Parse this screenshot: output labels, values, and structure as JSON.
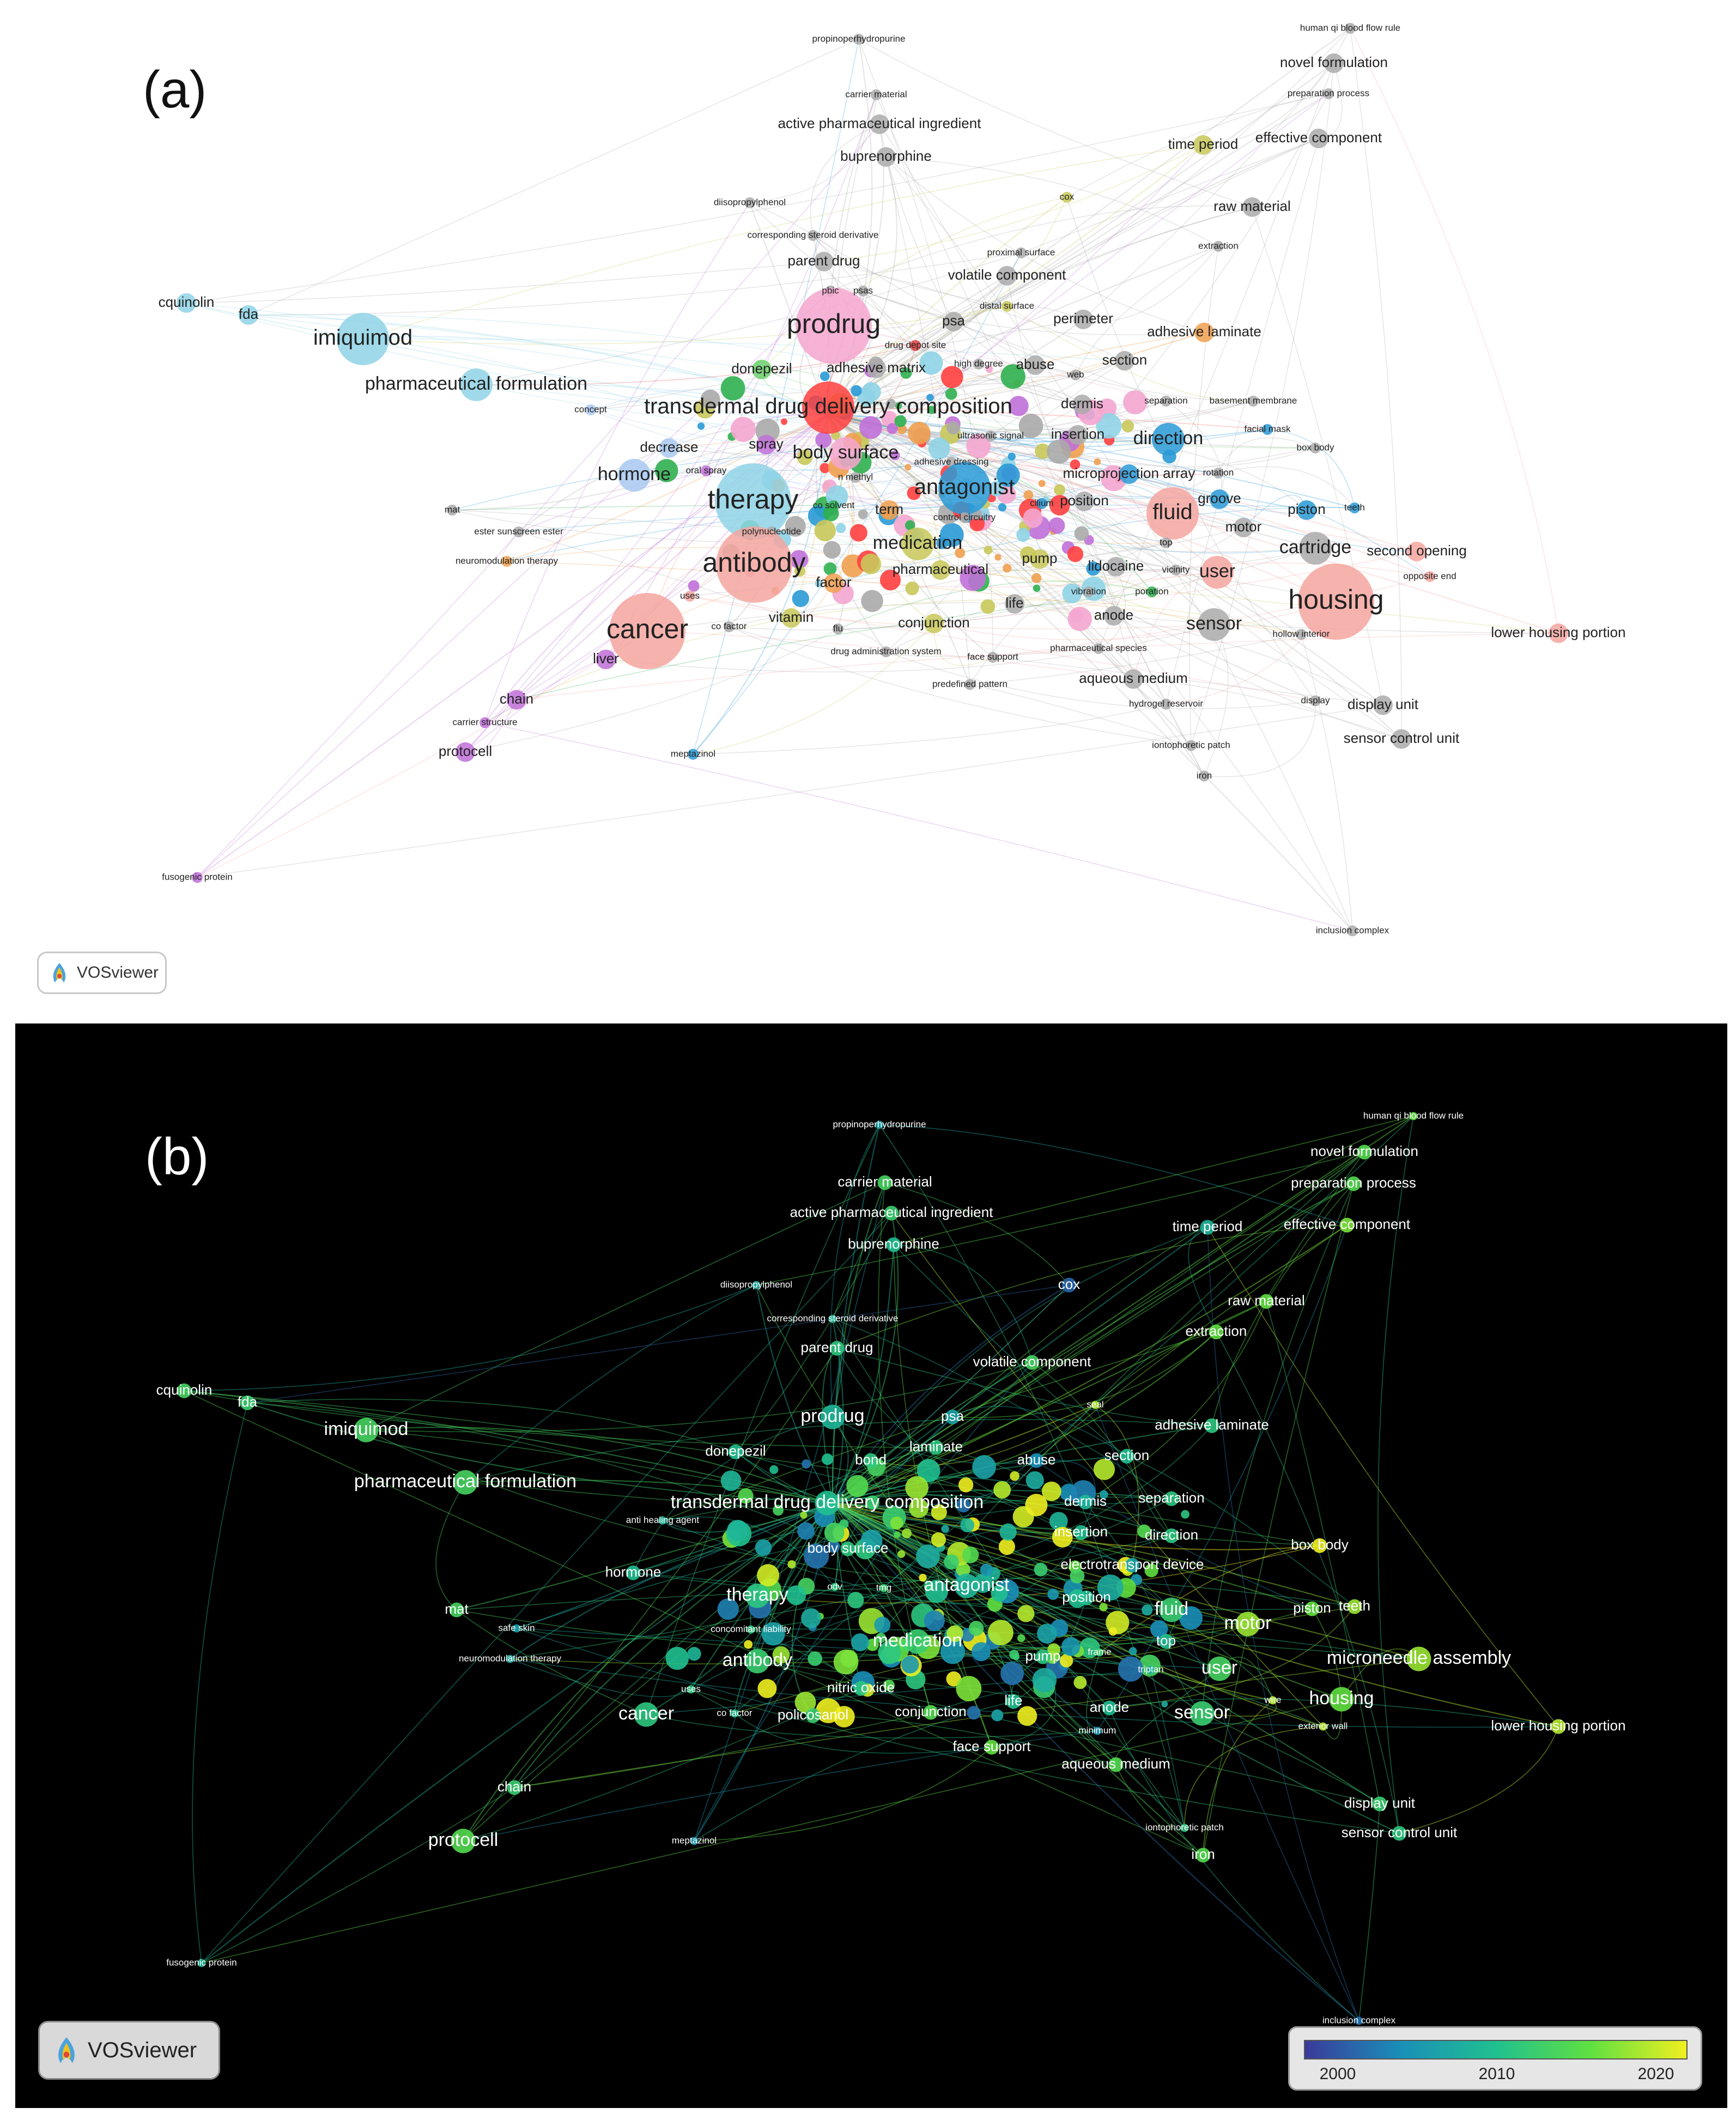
{
  "panel_a": {
    "label": "(a)",
    "badge": "VOSviewer",
    "nodes": [
      {
        "label": "human qi blood flow rule",
        "color": "#aaaaaa",
        "size": 1
      },
      {
        "label": "novel formulation",
        "color": "#aaaaaa",
        "size": 2
      },
      {
        "label": "preparation process",
        "color": "#aaaaaa",
        "size": 1
      },
      {
        "label": "propinoperhydropurine",
        "color": "#aaaaaa",
        "size": 1
      },
      {
        "label": "carrier material",
        "color": "#aaaaaa",
        "size": 1
      },
      {
        "label": "active pharmaceutical ingredient",
        "color": "#aaaaaa",
        "size": 2
      },
      {
        "label": "buprenorphine",
        "color": "#aaaaaa",
        "size": 2
      },
      {
        "label": "time period",
        "color": "#c8c85a",
        "size": 2
      },
      {
        "label": "effective component",
        "color": "#aaaaaa",
        "size": 2
      },
      {
        "label": "cox",
        "color": "#c8c85a",
        "size": 1
      },
      {
        "label": "raw material",
        "color": "#aaaaaa",
        "size": 2
      },
      {
        "label": "diisopropylphenol",
        "color": "#aaaaaa",
        "size": 1
      },
      {
        "label": "corresponding steroid derivative",
        "color": "#aaaaaa",
        "size": 1
      },
      {
        "label": "extraction",
        "color": "#aaaaaa",
        "size": 1
      },
      {
        "label": "parent drug",
        "color": "#aaaaaa",
        "size": 2
      },
      {
        "label": "proximal surface",
        "color": "#aaaaaa",
        "size": 1
      },
      {
        "label": "volatile component",
        "color": "#aaaaaa",
        "size": 2
      },
      {
        "label": "pbic",
        "color": "#aaaaaa",
        "size": 1
      },
      {
        "label": "psas",
        "color": "#aaaaaa",
        "size": 1
      },
      {
        "label": "distal surface",
        "color": "#c8c85a",
        "size": 1
      },
      {
        "label": "perimeter",
        "color": "#aaaaaa",
        "size": 2
      },
      {
        "label": "cquinolin",
        "color": "#8fd3e6",
        "size": 2
      },
      {
        "label": "fda",
        "color": "#8fd3e6",
        "size": 2
      },
      {
        "label": "prodrug",
        "color": "#f4a6cf",
        "size": 5
      },
      {
        "label": "psa",
        "color": "#aaaaaa",
        "size": 2
      },
      {
        "label": "adhesive laminate",
        "color": "#f0a050",
        "size": 2
      },
      {
        "label": "imiquimod",
        "color": "#8fd3e6",
        "size": 4
      },
      {
        "label": "drug depot site",
        "color": "#e04040",
        "size": 1
      },
      {
        "label": "donepezil",
        "color": "#6bd06b",
        "size": 2
      },
      {
        "label": "adhesive matrix",
        "color": "#aaaaaa",
        "size": 2
      },
      {
        "label": "high degree",
        "color": "#aaaaaa",
        "size": 1
      },
      {
        "label": "abuse",
        "color": "#aaaaaa",
        "size": 2
      },
      {
        "label": "web",
        "color": "#aaaaaa",
        "size": 1
      },
      {
        "label": "section",
        "color": "#aaaaaa",
        "size": 2
      },
      {
        "label": "pharmaceutical formulation",
        "color": "#8fd3e6",
        "size": 3
      },
      {
        "label": "transdermal drug delivery composition",
        "color": "#ff4040",
        "size": 4
      },
      {
        "label": "dermis",
        "color": "#aaaaaa",
        "size": 2
      },
      {
        "label": "separation",
        "color": "#aaaaaa",
        "size": 1
      },
      {
        "label": "basement membrane",
        "color": "#aaaaaa",
        "size": 1
      },
      {
        "label": "concept",
        "color": "#a8c8f0",
        "size": 1
      },
      {
        "label": "ultrasonic signal",
        "color": "#aaaaaa",
        "size": 1
      },
      {
        "label": "insertion",
        "color": "#aaaaaa",
        "size": 2
      },
      {
        "label": "facial mask",
        "color": "#2a9ad6",
        "size": 1
      },
      {
        "label": "direction",
        "color": "#2a9ad6",
        "size": 3
      },
      {
        "label": "decrease",
        "color": "#a8c8f0",
        "size": 2
      },
      {
        "label": "spray",
        "color": "#c070d8",
        "size": 2
      },
      {
        "label": "body surface",
        "color": "#f4a6cf",
        "size": 3
      },
      {
        "label": "box body",
        "color": "#aaaaaa",
        "size": 1
      },
      {
        "label": "adhesive dressing",
        "color": "#aaaaaa",
        "size": 1
      },
      {
        "label": "oral spray",
        "color": "#c070d8",
        "size": 1
      },
      {
        "label": "n methyl",
        "color": "#aaaaaa",
        "size": 1
      },
      {
        "label": "hormone",
        "color": "#a8c8f0",
        "size": 3
      },
      {
        "label": "antagonist",
        "color": "#2a9ad6",
        "size": 4
      },
      {
        "label": "microprojection array",
        "color": "#2a9ad6",
        "size": 2
      },
      {
        "label": "rotation",
        "color": "#aaaaaa",
        "size": 1
      },
      {
        "label": "co solvent",
        "color": "#30b050",
        "size": 1
      },
      {
        "label": "groove",
        "color": "#2a9ad6",
        "size": 2
      },
      {
        "label": "therapy",
        "color": "#8fd3e6",
        "size": 5
      },
      {
        "label": "cilium",
        "color": "#2a9ad6",
        "size": 1
      },
      {
        "label": "position",
        "color": "#aaaaaa",
        "size": 2
      },
      {
        "label": "piston",
        "color": "#2a9ad6",
        "size": 2
      },
      {
        "label": "teeth",
        "color": "#2a9ad6",
        "size": 1
      },
      {
        "label": "mat",
        "color": "#aaaaaa",
        "size": 1
      },
      {
        "label": "term",
        "color": "#f0a050",
        "size": 2
      },
      {
        "label": "control circuitry",
        "color": "#aaaaaa",
        "size": 1
      },
      {
        "label": "fluid",
        "color": "#f4a6a0",
        "size": 4
      },
      {
        "label": "polynucleotide",
        "color": "#aaaaaa",
        "size": 1
      },
      {
        "label": "motor",
        "color": "#aaaaaa",
        "size": 2
      },
      {
        "label": "ester sunscreen ester",
        "color": "#aaaaaa",
        "size": 1
      },
      {
        "label": "medication",
        "color": "#c8c85a",
        "size": 3
      },
      {
        "label": "top",
        "color": "#aaaaaa",
        "size": 1
      },
      {
        "label": "cartridge",
        "color": "#aaaaaa",
        "size": 3
      },
      {
        "label": "second opening",
        "color": "#f4a6a0",
        "size": 2
      },
      {
        "label": "pump",
        "color": "#c8c85a",
        "size": 2
      },
      {
        "label": "antibody",
        "color": "#f4a6a0",
        "size": 5
      },
      {
        "label": "neuromodulation therapy",
        "color": "#f0a050",
        "size": 1
      },
      {
        "label": "pharmaceutical",
        "color": "#c8c85a",
        "size": 2
      },
      {
        "label": "lidocaine",
        "color": "#aaaaaa",
        "size": 2
      },
      {
        "label": "vicinity",
        "color": "#aaaaaa",
        "size": 1
      },
      {
        "label": "opposite end",
        "color": "#f4a6a0",
        "size": 1
      },
      {
        "label": "factor",
        "color": "#f0a050",
        "size": 2
      },
      {
        "label": "user",
        "color": "#f4a6a0",
        "size": 3
      },
      {
        "label": "vibration",
        "color": "#aaaaaa",
        "size": 1
      },
      {
        "label": "poration",
        "color": "#30b050",
        "size": 1
      },
      {
        "label": "housing",
        "color": "#f4a6a0",
        "size": 5
      },
      {
        "label": "uses",
        "color": "#f4a6a0",
        "size": 1
      },
      {
        "label": "life",
        "color": "#aaaaaa",
        "size": 2
      },
      {
        "label": "vitamin",
        "color": "#c8c85a",
        "size": 2
      },
      {
        "label": "anode",
        "color": "#aaaaaa",
        "size": 2
      },
      {
        "label": "co factor",
        "color": "#aaaaaa",
        "size": 1
      },
      {
        "label": "flu",
        "color": "#aaaaaa",
        "size": 1
      },
      {
        "label": "conjunction",
        "color": "#c8c85a",
        "size": 2
      },
      {
        "label": "sensor",
        "color": "#aaaaaa",
        "size": 3
      },
      {
        "label": "cancer",
        "color": "#f4a6a0",
        "size": 5
      },
      {
        "label": "hollow interior",
        "color": "#aaaaaa",
        "size": 1
      },
      {
        "label": "lower housing portion",
        "color": "#f4a6a0",
        "size": 2
      },
      {
        "label": "pharmaceutical species",
        "color": "#aaaaaa",
        "size": 1
      },
      {
        "label": "drug administration system",
        "color": "#aaaaaa",
        "size": 1
      },
      {
        "label": "face support",
        "color": "#aaaaaa",
        "size": 1
      },
      {
        "label": "liver",
        "color": "#c070d8",
        "size": 2
      },
      {
        "label": "aqueous medium",
        "color": "#aaaaaa",
        "size": 2
      },
      {
        "label": "predefined pattern",
        "color": "#aaaaaa",
        "size": 1
      },
      {
        "label": "chain",
        "color": "#c070d8",
        "size": 2
      },
      {
        "label": "hydrogel reservoir",
        "color": "#aaaaaa",
        "size": 1
      },
      {
        "label": "display",
        "color": "#aaaaaa",
        "size": 1
      },
      {
        "label": "display unit",
        "color": "#aaaaaa",
        "size": 2
      },
      {
        "label": "carrier structure",
        "color": "#c070d8",
        "size": 1
      },
      {
        "label": "sensor control unit",
        "color": "#aaaaaa",
        "size": 2
      },
      {
        "label": "iontophoretic patch",
        "color": "#aaaaaa",
        "size": 1
      },
      {
        "label": "protocell",
        "color": "#c070d8",
        "size": 2
      },
      {
        "label": "meptazinol",
        "color": "#2a9ad6",
        "size": 1
      },
      {
        "label": "iron",
        "color": "#aaaaaa",
        "size": 1
      },
      {
        "label": "fusogenic protein",
        "color": "#c070d8",
        "size": 1
      },
      {
        "label": "inclusion complex",
        "color": "#aaaaaa",
        "size": 1
      }
    ]
  },
  "panel_b": {
    "label": "(b)",
    "badge": "VOSviewer",
    "legend": {
      "ticks": [
        "2000",
        "2010",
        "2020"
      ],
      "colors": [
        "#3a3a9a",
        "#1a8fb8",
        "#20c090",
        "#60e040",
        "#f0f020"
      ]
    },
    "nodes": [
      {
        "label": "propinoperhydropurine",
        "year": 2008,
        "size": 1
      },
      {
        "label": "human qi blood flow rule",
        "year": 2016,
        "size": 1
      },
      {
        "label": "novel formulation",
        "year": 2015,
        "size": 2
      },
      {
        "label": "carrier material",
        "year": 2014,
        "size": 2
      },
      {
        "label": "preparation process",
        "year": 2015,
        "size": 2
      },
      {
        "label": "active pharmaceutical ingredient",
        "year": 2013,
        "size": 2
      },
      {
        "label": "time period",
        "year": 2010,
        "size": 2
      },
      {
        "label": "effective component",
        "year": 2017,
        "size": 2
      },
      {
        "label": "buprenorphine",
        "year": 2011,
        "size": 2
      },
      {
        "label": "diisopropylphenol",
        "year": 2009,
        "size": 1
      },
      {
        "label": "cox",
        "year": 2003,
        "size": 2
      },
      {
        "label": "raw material",
        "year": 2016,
        "size": 2
      },
      {
        "label": "corresponding steroid derivative",
        "year": 2010,
        "size": 1
      },
      {
        "label": "extraction",
        "year": 2016,
        "size": 2
      },
      {
        "label": "parent drug",
        "year": 2012,
        "size": 2
      },
      {
        "label": "volatile component",
        "year": 2014,
        "size": 2
      },
      {
        "label": "cquinolin",
        "year": 2014,
        "size": 2
      },
      {
        "label": "fda",
        "year": 2013,
        "size": 2
      },
      {
        "label": "seal",
        "year": 2019,
        "size": 1
      },
      {
        "label": "prodrug",
        "year": 2010,
        "size": 3
      },
      {
        "label": "psa",
        "year": 2008,
        "size": 2
      },
      {
        "label": "adhesive laminate",
        "year": 2012,
        "size": 2
      },
      {
        "label": "imiquimod",
        "year": 2014,
        "size": 3
      },
      {
        "label": "laminate",
        "year": 2012,
        "size": 2
      },
      {
        "label": "donepezil",
        "year": 2011,
        "size": 2
      },
      {
        "label": "bond",
        "year": 2012,
        "size": 2
      },
      {
        "label": "abuse",
        "year": 2006,
        "size": 2
      },
      {
        "label": "section",
        "year": 2011,
        "size": 2
      },
      {
        "label": "pharmaceutical formulation",
        "year": 2014,
        "size": 3
      },
      {
        "label": "transdermal drug delivery composition",
        "year": 2011,
        "size": 3
      },
      {
        "label": "dermis",
        "year": 2010,
        "size": 2
      },
      {
        "label": "separation",
        "year": 2012,
        "size": 2
      },
      {
        "label": "anti healing agent",
        "year": 2010,
        "size": 1
      },
      {
        "label": "insertion",
        "year": 2011,
        "size": 2
      },
      {
        "label": "direction",
        "year": 2012,
        "size": 2
      },
      {
        "label": "box body",
        "year": 2021,
        "size": 2
      },
      {
        "label": "body surface",
        "year": 2012,
        "size": 2
      },
      {
        "label": "electrotransport device",
        "year": 2008,
        "size": 2
      },
      {
        "label": "hormone",
        "year": 2011,
        "size": 2
      },
      {
        "label": "odv",
        "year": 2012,
        "size": 1
      },
      {
        "label": "tmg",
        "year": 2013,
        "size": 1
      },
      {
        "label": "antagonist",
        "year": 2010,
        "size": 3
      },
      {
        "label": "therapy",
        "year": 2012,
        "size": 3
      },
      {
        "label": "position",
        "year": 2011,
        "size": 2
      },
      {
        "label": "fluid",
        "year": 2013,
        "size": 3
      },
      {
        "label": "piston",
        "year": 2016,
        "size": 2
      },
      {
        "label": "teeth",
        "year": 2018,
        "size": 2
      },
      {
        "label": "mat",
        "year": 2014,
        "size": 2
      },
      {
        "label": "motor",
        "year": 2018,
        "size": 3
      },
      {
        "label": "safe skin",
        "year": 2008,
        "size": 1
      },
      {
        "label": "concomitant liability",
        "year": 2012,
        "size": 1
      },
      {
        "label": "top",
        "year": 2011,
        "size": 2
      },
      {
        "label": "medication",
        "year": 2013,
        "size": 3
      },
      {
        "label": "neuromodulation therapy",
        "year": 2009,
        "size": 1
      },
      {
        "label": "frame",
        "year": 2013,
        "size": 1
      },
      {
        "label": "pump",
        "year": 2012,
        "size": 2
      },
      {
        "label": "user",
        "year": 2014,
        "size": 3
      },
      {
        "label": "microneedle assembly",
        "year": 2018,
        "size": 3
      },
      {
        "label": "antibody",
        "year": 2013,
        "size": 3
      },
      {
        "label": "triptan",
        "year": 2009,
        "size": 1
      },
      {
        "label": "uses",
        "year": 2012,
        "size": 1
      },
      {
        "label": "nitric oxide",
        "year": 2012,
        "size": 2
      },
      {
        "label": "life",
        "year": 2011,
        "size": 2
      },
      {
        "label": "wire",
        "year": 2019,
        "size": 1
      },
      {
        "label": "housing",
        "year": 2016,
        "size": 3
      },
      {
        "label": "anode",
        "year": 2011,
        "size": 2
      },
      {
        "label": "cancer",
        "year": 2012,
        "size": 3
      },
      {
        "label": "co factor",
        "year": 2011,
        "size": 1
      },
      {
        "label": "policosanol",
        "year": 2013,
        "size": 2
      },
      {
        "label": "conjunction",
        "year": 2015,
        "size": 2
      },
      {
        "label": "sensor",
        "year": 2013,
        "size": 3
      },
      {
        "label": "exterior wall",
        "year": 2019,
        "size": 1
      },
      {
        "label": "lower housing portion",
        "year": 2019,
        "size": 2
      },
      {
        "label": "minimum",
        "year": 2007,
        "size": 1
      },
      {
        "label": "face support",
        "year": 2016,
        "size": 2
      },
      {
        "label": "aqueous medium",
        "year": 2015,
        "size": 2
      },
      {
        "label": "chain",
        "year": 2013,
        "size": 2
      },
      {
        "label": "display unit",
        "year": 2013,
        "size": 2
      },
      {
        "label": "iontophoretic patch",
        "year": 2012,
        "size": 1
      },
      {
        "label": "sensor control unit",
        "year": 2012,
        "size": 2
      },
      {
        "label": "protocell",
        "year": 2015,
        "size": 3
      },
      {
        "label": "meptazinol",
        "year": 2007,
        "size": 1
      },
      {
        "label": "iron",
        "year": 2015,
        "size": 2
      },
      {
        "label": "fusogenic protein",
        "year": 2010,
        "size": 1
      },
      {
        "label": "inclusion complex",
        "year": 2004,
        "size": 1
      }
    ]
  }
}
